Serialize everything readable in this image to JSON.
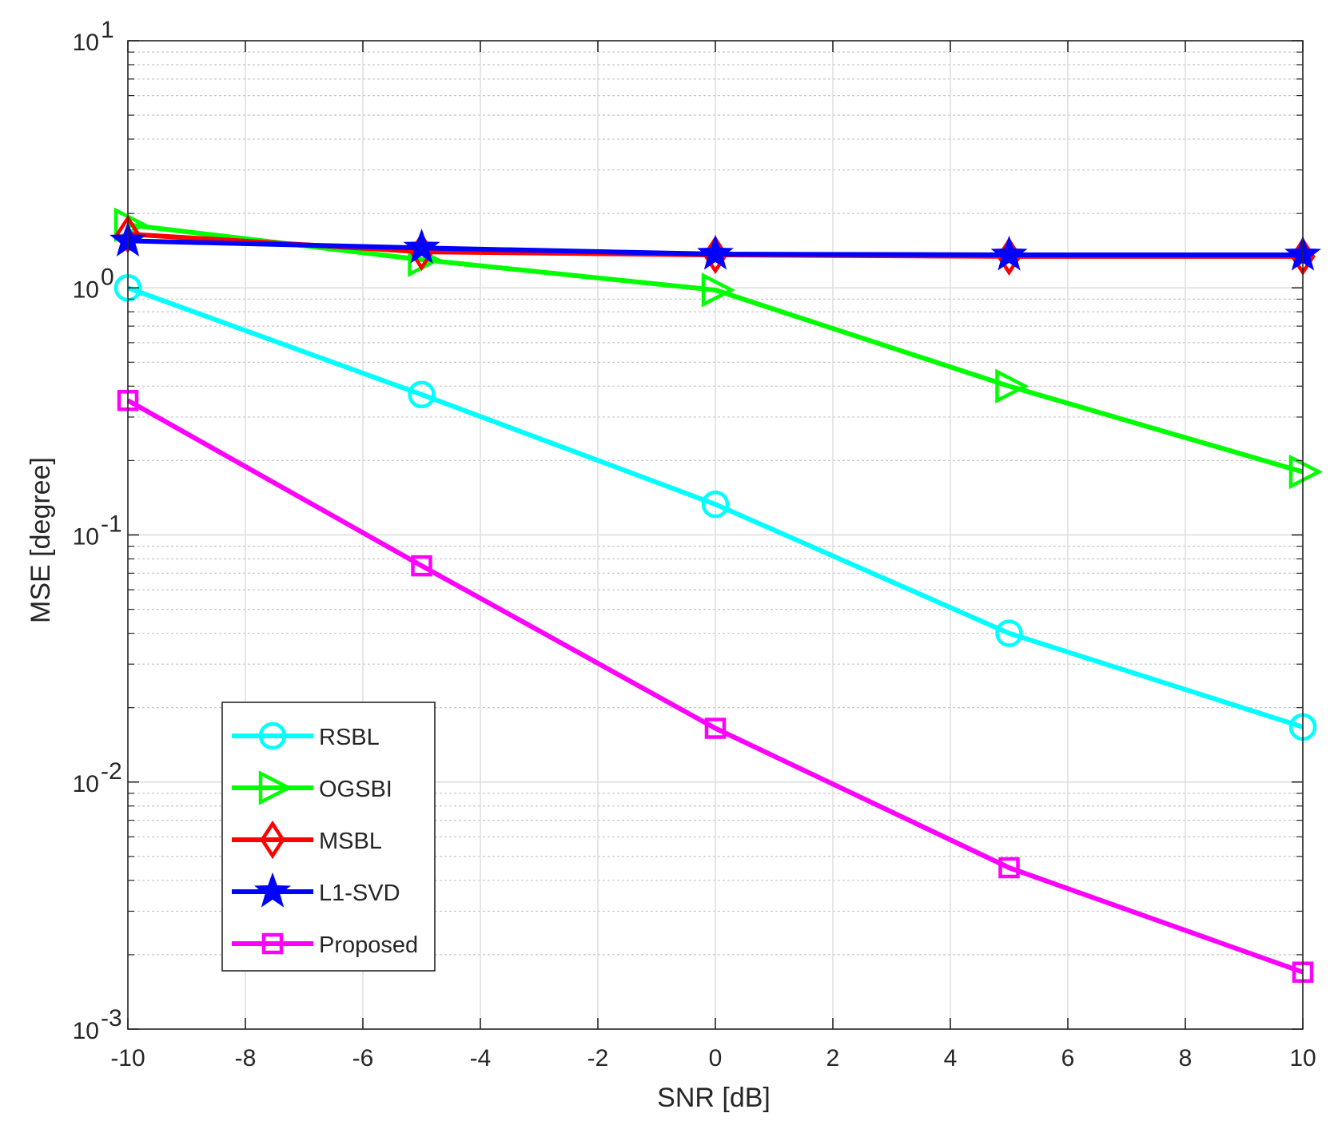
{
  "chart_data": {
    "type": "line",
    "title": "",
    "xlabel": "SNR [dB]",
    "ylabel": "MSE [degree]",
    "xscale": "linear",
    "yscale": "log",
    "xlim": [
      -10,
      10
    ],
    "ylim": [
      0.001,
      10
    ],
    "xticks": [
      -10,
      -8,
      -6,
      -4,
      -2,
      0,
      2,
      4,
      6,
      8,
      10
    ],
    "xtick_labels": [
      "-10",
      "-8",
      "-6",
      "-4",
      "-2",
      "0",
      "2",
      "4",
      "6",
      "8",
      "10"
    ],
    "yticks": [
      {
        "value": 10,
        "base": "10",
        "exp": "1"
      },
      {
        "value": 1,
        "base": "10",
        "exp": "0"
      },
      {
        "value": 0.1,
        "base": "10",
        "exp": "-1"
      },
      {
        "value": 0.01,
        "base": "10",
        "exp": "-2"
      },
      {
        "value": 0.001,
        "base": "10",
        "exp": "-3"
      }
    ],
    "grid": true,
    "minor_grid": true,
    "legend_position": "lower-left",
    "x": [
      -10,
      -5,
      0,
      5,
      10
    ],
    "series": [
      {
        "name": "RSBL",
        "color": "#00FFFF",
        "marker": "circle",
        "values": [
          1.0,
          0.37,
          0.133,
          0.04,
          0.0167
        ]
      },
      {
        "name": "OGSBI",
        "color": "#00FF00",
        "marker": "triangle-right",
        "values": [
          1.8,
          1.3,
          0.98,
          0.4,
          0.18
        ]
      },
      {
        "name": "MSBL",
        "color": "#FF0000",
        "marker": "diamond",
        "values": [
          1.65,
          1.4,
          1.36,
          1.34,
          1.34
        ]
      },
      {
        "name": "L1-SVD",
        "color": "#0000FF",
        "marker": "star",
        "values": [
          1.55,
          1.45,
          1.37,
          1.36,
          1.36
        ]
      },
      {
        "name": "Proposed",
        "color": "#FF00FF",
        "marker": "square",
        "values": [
          0.35,
          0.075,
          0.0165,
          0.0045,
          0.0017
        ]
      }
    ]
  }
}
